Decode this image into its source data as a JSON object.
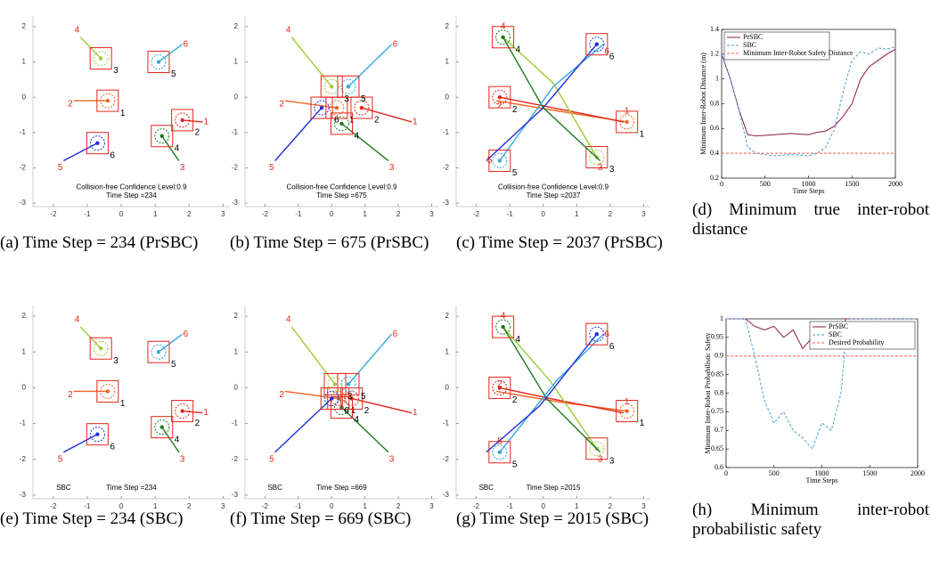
{
  "chart_data": [
    {
      "type": "trajectory",
      "caption": "(a) Time Step = 234 (PrSBC)",
      "xlim": [
        -2.6,
        3.2
      ],
      "ylim": [
        -3.1,
        2.3
      ],
      "xticks": [
        -2,
        -1,
        0,
        1,
        2,
        3
      ],
      "yticks": [
        -3,
        -2,
        -1,
        0,
        1,
        2
      ],
      "annotations": [
        {
          "text": "Collision-free Confidence Level:0.9",
          "x": 0.3,
          "y": -2.55
        },
        {
          "text": "Time Step =234",
          "x": 0.3,
          "y": -2.8
        }
      ],
      "robots": [
        {
          "label": "1",
          "color": "#f26522",
          "x": [
            -1.4,
            -0.4
          ],
          "y": [
            -0.1,
            -0.1
          ]
        },
        {
          "label": "2",
          "color": "#e3261a",
          "x": [
            2.4,
            1.8
          ],
          "y": [
            -0.7,
            -0.65
          ]
        },
        {
          "label": "3",
          "color": "#9acd32",
          "x": [
            -1.2,
            -0.6
          ],
          "y": [
            1.7,
            1.1
          ]
        },
        {
          "label": "4",
          "color": "#1e7b1e",
          "x": [
            1.7,
            1.2
          ],
          "y": [
            -1.8,
            -1.1
          ]
        },
        {
          "label": "5",
          "color": "#35a8e0",
          "x": [
            1.8,
            1.1
          ],
          "y": [
            1.5,
            1.0
          ]
        },
        {
          "label": "6",
          "color": "#1f2fd6",
          "x": [
            -1.7,
            -0.7
          ],
          "y": [
            -1.8,
            -1.3
          ]
        }
      ],
      "goals": [
        {
          "label": "1",
          "x": 2.5,
          "y": -0.7
        },
        {
          "label": "2",
          "x": -1.5,
          "y": -0.2
        },
        {
          "label": "3",
          "x": 1.8,
          "y": -2.0
        },
        {
          "label": "4",
          "x": -1.3,
          "y": 1.9
        },
        {
          "label": "5",
          "x": -1.8,
          "y": -2.0
        },
        {
          "label": "6",
          "x": 1.9,
          "y": 1.5
        }
      ]
    },
    {
      "type": "trajectory",
      "caption": "(b) Time Step = 675 (PrSBC)",
      "xlim": [
        -2.6,
        3.2
      ],
      "ylim": [
        -3.1,
        2.3
      ],
      "xticks": [
        -2,
        -1,
        0,
        1,
        2,
        3
      ],
      "yticks": [
        -3,
        -2,
        -1,
        0,
        1,
        2
      ],
      "annotations": [
        {
          "text": "Collision-free Confidence Level:0.9",
          "x": 0.3,
          "y": -2.55
        },
        {
          "text": "Time Step =675",
          "x": 0.3,
          "y": -2.8
        }
      ],
      "robots": [
        {
          "label": "1",
          "color": "#f26522",
          "x": [
            -1.4,
            0.15
          ],
          "y": [
            -0.1,
            -0.3
          ]
        },
        {
          "label": "2",
          "color": "#e3261a",
          "x": [
            2.4,
            0.9
          ],
          "y": [
            -0.7,
            -0.3
          ]
        },
        {
          "label": "3",
          "color": "#9acd32",
          "x": [
            -1.2,
            0.0
          ],
          "y": [
            1.7,
            0.3
          ]
        },
        {
          "label": "4",
          "color": "#1e7b1e",
          "x": [
            1.7,
            0.3
          ],
          "y": [
            -1.8,
            -0.75
          ]
        },
        {
          "label": "5",
          "color": "#35a8e0",
          "x": [
            1.8,
            0.5
          ],
          "y": [
            1.5,
            0.3
          ]
        },
        {
          "label": "6",
          "color": "#1f2fd6",
          "x": [
            -1.7,
            -0.3
          ],
          "y": [
            -1.8,
            -0.3
          ]
        }
      ],
      "goals": [
        {
          "label": "1",
          "x": 2.5,
          "y": -0.7
        },
        {
          "label": "2",
          "x": -1.5,
          "y": -0.2
        },
        {
          "label": "3",
          "x": 1.8,
          "y": -2.0
        },
        {
          "label": "4",
          "x": -1.3,
          "y": 1.9
        },
        {
          "label": "5",
          "x": -1.8,
          "y": -2.0
        },
        {
          "label": "6",
          "x": 1.9,
          "y": 1.5
        }
      ]
    },
    {
      "type": "trajectory",
      "caption": "(c) Time Step = 2037 (PrSBC)",
      "xlim": [
        -2.6,
        3.2
      ],
      "ylim": [
        -3.1,
        2.3
      ],
      "xticks": [
        -2,
        -1,
        0,
        1,
        2,
        3
      ],
      "yticks": [
        -3,
        -2,
        -1,
        0,
        1,
        2
      ],
      "annotations": [
        {
          "text": "Collision-free Confidence Level:0.9",
          "x": 0.3,
          "y": -2.55
        },
        {
          "text": "Time Step =2037",
          "x": 0.3,
          "y": -2.8
        }
      ],
      "robots": [
        {
          "label": "1",
          "color": "#f26522",
          "x": [
            -1.4,
            0.5,
            2.5
          ],
          "y": [
            -0.1,
            -0.4,
            -0.7
          ]
        },
        {
          "label": "2",
          "color": "#e3261a",
          "x": [
            2.4,
            0.3,
            -1.3
          ],
          "y": [
            -0.7,
            -0.3,
            0.0
          ]
        },
        {
          "label": "3",
          "color": "#9acd32",
          "x": [
            -1.2,
            0.3,
            1.6
          ],
          "y": [
            1.7,
            0.4,
            -1.7
          ]
        },
        {
          "label": "4",
          "color": "#1e7b1e",
          "x": [
            1.7,
            0.0,
            -1.2
          ],
          "y": [
            -1.8,
            -0.3,
            1.7
          ]
        },
        {
          "label": "5",
          "color": "#35a8e0",
          "x": [
            1.8,
            0.3,
            -1.3
          ],
          "y": [
            1.5,
            0.3,
            -1.8
          ]
        },
        {
          "label": "6",
          "color": "#1f2fd6",
          "x": [
            -1.7,
            0.0,
            1.6
          ],
          "y": [
            -1.8,
            -0.3,
            1.5
          ]
        }
      ],
      "goals": [
        {
          "label": "1",
          "x": 2.5,
          "y": -0.4
        },
        {
          "label": "2",
          "x": -1.3,
          "y": -0.25
        },
        {
          "label": "3",
          "x": 1.7,
          "y": -2.0
        },
        {
          "label": "4",
          "x": -1.2,
          "y": 2.0
        },
        {
          "label": "5",
          "x": -1.6,
          "y": -1.8
        },
        {
          "label": "6",
          "x": 1.9,
          "y": 1.3
        }
      ]
    },
    {
      "type": "line",
      "caption": "(d) Minimum true inter-robot distance",
      "xlabel": "Time Steps",
      "ylabel": "Minimum Inter-Robot Distance (m)",
      "xlim": [
        0,
        2000
      ],
      "ylim": [
        0.2,
        1.4
      ],
      "xticks": [
        0,
        500,
        1000,
        1500,
        2000
      ],
      "yticks": [
        0.2,
        0.4,
        0.6,
        0.8,
        1,
        1.2,
        1.4
      ],
      "legend": "upper left",
      "x": [
        0,
        100,
        200,
        300,
        400,
        600,
        800,
        1000,
        1100,
        1200,
        1300,
        1400,
        1500,
        1600,
        1700,
        1800,
        1900,
        2000
      ],
      "series": [
        {
          "name": "PrSBC",
          "color": "#8b1a4a",
          "style": "solid",
          "values": [
            1.2,
            1.0,
            0.75,
            0.55,
            0.54,
            0.55,
            0.56,
            0.55,
            0.57,
            0.58,
            0.62,
            0.7,
            0.8,
            1.0,
            1.1,
            1.15,
            1.2,
            1.24
          ]
        },
        {
          "name": "SBC",
          "color": "#4a9fd0",
          "style": "dashed",
          "values": [
            1.2,
            1.0,
            0.75,
            0.45,
            0.4,
            0.38,
            0.39,
            0.38,
            0.4,
            0.45,
            0.6,
            0.9,
            1.15,
            1.22,
            1.2,
            1.25,
            1.24,
            1.26
          ]
        },
        {
          "name": "Minimum Inter-Robot Safety Distance",
          "color": "#ff5a4a",
          "style": "dashed",
          "x": [
            0,
            2000
          ],
          "values": [
            0.4,
            0.4
          ]
        }
      ]
    },
    {
      "type": "trajectory",
      "caption": "(e) Time Step = 234 (SBC)",
      "xlim": [
        -2.6,
        3.2
      ],
      "ylim": [
        -3.1,
        2.3
      ],
      "xticks": [
        -2,
        -1,
        0,
        1,
        2,
        3
      ],
      "yticks": [
        -3,
        -2,
        -1,
        0,
        1,
        2
      ],
      "annotations": [
        {
          "text": "SBC",
          "x": -1.7,
          "y": -2.8
        },
        {
          "text": "Time Step =234",
          "x": 0.3,
          "y": -2.8
        }
      ],
      "robots": [
        {
          "label": "1",
          "color": "#f26522",
          "x": [
            -1.4,
            -0.4
          ],
          "y": [
            -0.1,
            -0.1
          ]
        },
        {
          "label": "2",
          "color": "#e3261a",
          "x": [
            2.4,
            1.8
          ],
          "y": [
            -0.7,
            -0.65
          ]
        },
        {
          "label": "3",
          "color": "#9acd32",
          "x": [
            -1.2,
            -0.6
          ],
          "y": [
            1.7,
            1.1
          ]
        },
        {
          "label": "4",
          "color": "#1e7b1e",
          "x": [
            1.7,
            1.2
          ],
          "y": [
            -1.8,
            -1.1
          ]
        },
        {
          "label": "5",
          "color": "#35a8e0",
          "x": [
            1.8,
            1.1
          ],
          "y": [
            1.5,
            1.0
          ]
        },
        {
          "label": "6",
          "color": "#1f2fd6",
          "x": [
            -1.7,
            -0.7
          ],
          "y": [
            -1.8,
            -1.3
          ]
        }
      ],
      "goals": [
        {
          "label": "1",
          "x": 2.5,
          "y": -0.7
        },
        {
          "label": "2",
          "x": -1.5,
          "y": -0.2
        },
        {
          "label": "3",
          "x": 1.8,
          "y": -2.0
        },
        {
          "label": "4",
          "x": -1.3,
          "y": 1.9
        },
        {
          "label": "5",
          "x": -1.8,
          "y": -2.0
        },
        {
          "label": "6",
          "x": 1.9,
          "y": 1.5
        }
      ]
    },
    {
      "type": "trajectory",
      "caption": "(f) Time Step = 669 (SBC)",
      "xlim": [
        -2.6,
        3.2
      ],
      "ylim": [
        -3.1,
        2.3
      ],
      "xticks": [
        -2,
        -1,
        0,
        1,
        2,
        3
      ],
      "yticks": [
        -3,
        -2,
        -1,
        0,
        1,
        2
      ],
      "annotations": [
        {
          "text": "SBC",
          "x": -1.7,
          "y": -2.8
        },
        {
          "text": "Time Step =669",
          "x": 0.3,
          "y": -2.8
        }
      ],
      "robots": [
        {
          "label": "1",
          "color": "#f26522",
          "x": [
            -1.4,
            0.2
          ],
          "y": [
            -0.1,
            -0.3
          ]
        },
        {
          "label": "2",
          "color": "#e3261a",
          "x": [
            2.4,
            0.6
          ],
          "y": [
            -0.7,
            -0.3
          ]
        },
        {
          "label": "3",
          "color": "#9acd32",
          "x": [
            -1.2,
            0.1
          ],
          "y": [
            1.7,
            0.1
          ]
        },
        {
          "label": "4",
          "color": "#1e7b1e",
          "x": [
            1.7,
            0.3
          ],
          "y": [
            -1.8,
            -0.55
          ]
        },
        {
          "label": "5",
          "color": "#35a8e0",
          "x": [
            1.8,
            0.5
          ],
          "y": [
            1.5,
            0.1
          ]
        },
        {
          "label": "6",
          "color": "#1f2fd6",
          "x": [
            -1.7,
            0.0
          ],
          "y": [
            -1.8,
            -0.3
          ]
        }
      ],
      "goals": [
        {
          "label": "1",
          "x": 2.5,
          "y": -0.7
        },
        {
          "label": "2",
          "x": -1.5,
          "y": -0.2
        },
        {
          "label": "3",
          "x": 1.8,
          "y": -2.0
        },
        {
          "label": "4",
          "x": -1.3,
          "y": 1.9
        },
        {
          "label": "5",
          "x": -1.8,
          "y": -2.0
        },
        {
          "label": "6",
          "x": 1.9,
          "y": 1.5
        }
      ]
    },
    {
      "type": "trajectory",
      "caption": "(g) Time Step = 2015 (SBC)",
      "xlim": [
        -2.6,
        3.2
      ],
      "ylim": [
        -3.1,
        2.3
      ],
      "xticks": [
        -2,
        -1,
        0,
        1,
        2,
        3
      ],
      "yticks": [
        -3,
        -2,
        -1,
        0,
        1,
        2
      ],
      "annotations": [
        {
          "text": "SBC",
          "x": -1.7,
          "y": -2.8
        },
        {
          "text": "Time Step =2015",
          "x": 0.3,
          "y": -2.8
        }
      ],
      "robots": [
        {
          "label": "1",
          "color": "#f26522",
          "x": [
            -1.4,
            0.5,
            2.5
          ],
          "y": [
            -0.1,
            -0.4,
            -0.65
          ]
        },
        {
          "label": "2",
          "color": "#e3261a",
          "x": [
            2.4,
            0.2,
            -1.3
          ],
          "y": [
            -0.7,
            -0.3,
            0.0
          ]
        },
        {
          "label": "3",
          "color": "#9acd32",
          "x": [
            -1.2,
            0.2,
            1.6
          ],
          "y": [
            1.7,
            0.2,
            -1.7
          ]
        },
        {
          "label": "4",
          "color": "#1e7b1e",
          "x": [
            1.7,
            0.1,
            -1.2
          ],
          "y": [
            -1.8,
            -0.3,
            1.7
          ]
        },
        {
          "label": "5",
          "color": "#35a8e0",
          "x": [
            1.8,
            0.4,
            -1.3
          ],
          "y": [
            1.5,
            0.2,
            -1.8
          ]
        },
        {
          "label": "6",
          "color": "#1f2fd6",
          "x": [
            -1.7,
            -0.1,
            1.6
          ],
          "y": [
            -1.8,
            -0.5,
            1.5
          ]
        }
      ],
      "goals": [
        {
          "label": "1",
          "x": 2.5,
          "y": -0.4
        },
        {
          "label": "2",
          "x": -1.3,
          "y": 0.1
        },
        {
          "label": "3",
          "x": 1.7,
          "y": -2.0
        },
        {
          "label": "4",
          "x": -1.2,
          "y": 2.0
        },
        {
          "label": "5",
          "x": -1.3,
          "y": -1.5
        },
        {
          "label": "6",
          "x": 1.9,
          "y": 1.5
        }
      ]
    },
    {
      "type": "line",
      "caption": "(h) Minimum inter-robot probabilistic safety",
      "xlabel": "Time Steps",
      "ylabel": "Minimum Inter-Robot Probabilistic Safety",
      "xlim": [
        0,
        2000
      ],
      "ylim": [
        0.6,
        1
      ],
      "xticks": [
        0,
        500,
        1000,
        1500,
        2000
      ],
      "yticks": [
        0.6,
        0.65,
        0.7,
        0.75,
        0.8,
        0.85,
        0.9,
        0.95,
        1
      ],
      "legend": "upper right",
      "x": [
        0,
        200,
        300,
        400,
        500,
        600,
        700,
        800,
        900,
        1000,
        1100,
        1200,
        1250,
        1300,
        1400,
        1500,
        2000
      ],
      "series": [
        {
          "name": "PrSBC",
          "color": "#8b1a4a",
          "style": "solid",
          "values": [
            1,
            1,
            0.98,
            0.97,
            0.98,
            0.95,
            0.97,
            0.92,
            0.95,
            0.97,
            0.99,
            0.96,
            1,
            1,
            1,
            1,
            1
          ]
        },
        {
          "name": "SBC",
          "color": "#4a9fd0",
          "style": "dashed",
          "values": [
            1,
            1,
            0.9,
            0.78,
            0.72,
            0.75,
            0.7,
            0.68,
            0.65,
            0.72,
            0.7,
            0.8,
            0.95,
            1,
            1,
            1,
            1
          ]
        },
        {
          "name": "Desired Probability",
          "color": "#ff5a4a",
          "style": "dashed",
          "x": [
            0,
            2000
          ],
          "values": [
            0.9,
            0.9
          ]
        }
      ]
    }
  ]
}
